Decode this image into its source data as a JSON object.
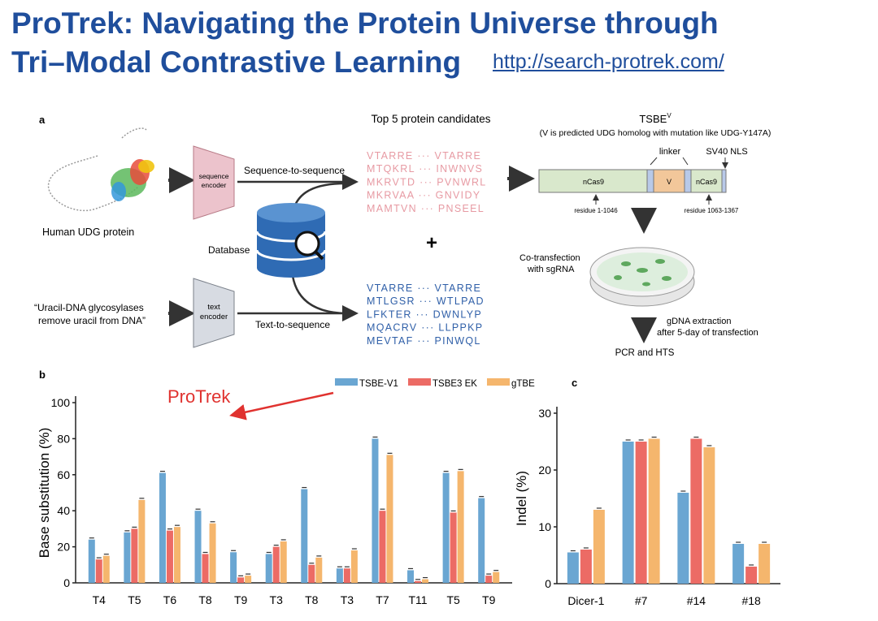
{
  "title": {
    "line1": "ProTrek: Navigating the Protein Universe through",
    "line2": "Tri–Modal Contrastive Learning",
    "url": "http://search-protrek.com/"
  },
  "panel_a": {
    "label": "a",
    "protein_label": "Human UDG protein",
    "seq_encoder": [
      "sequence",
      "encoder"
    ],
    "text_encoder": [
      "text",
      "encoder"
    ],
    "seq2seq": "Sequence-to-sequence",
    "text2seq": "Text-to-sequence",
    "database": "Database",
    "query_text": [
      "“Uracil-DNA glycosylases",
      "remove uracil from DNA”"
    ],
    "candidates_title": "Top 5 protein candidates",
    "plus": "+",
    "seq_candidates": [
      [
        "VTARRE",
        "VTARRE"
      ],
      [
        "MTQKRL",
        "INWNVS"
      ],
      [
        "MKRVTD",
        "PVNWRL"
      ],
      [
        "MKRVAA",
        "GNVIDY"
      ],
      [
        "MAMTVN",
        "PNSEEL"
      ]
    ],
    "text_candidates": [
      [
        "VTARRE",
        "VTARRE"
      ],
      [
        "MTLGSR",
        "WTLPAD"
      ],
      [
        "LFKTER",
        "DWNLYP"
      ],
      [
        "MQACRV",
        "LLPPKP"
      ],
      [
        "MEVTAF",
        "PINWQL"
      ]
    ],
    "tsbe_title": "TSBE",
    "tsbe_sup": "V",
    "tsbe_note": "(V is predicted UDG homolog with mutation like UDG-Y147A)",
    "linker": "linker",
    "nls": "SV40 NLS",
    "ncas9_left": "nCas9",
    "v_label": "V",
    "ncas9_right": "nCas9",
    "residue_left": "residue 1-1046",
    "residue_right": "residue 1063-1367",
    "cotransfection": [
      "Co-transfection",
      "with sgRNA"
    ],
    "gdna": [
      "gDNA extraction",
      "after 5-day of transfection"
    ],
    "pcr": "PCR and HTS"
  },
  "annotation": {
    "protrek": "ProTrek"
  },
  "chart_data": [
    {
      "type": "bar",
      "panel": "b",
      "ylabel": "Base substitution (%)",
      "xlabel": "",
      "ylim": [
        0,
        100
      ],
      "yticks": [
        0,
        20,
        40,
        60,
        80,
        100
      ],
      "categories": [
        "T4",
        "T5",
        "T6",
        "T8",
        "T9",
        "T3",
        "T8",
        "T3",
        "T7",
        "T11",
        "T5",
        "T9"
      ],
      "series": [
        {
          "name": "TSBE-V1",
          "color": "#6aa6d2",
          "values": [
            24,
            28,
            61,
            40,
            17,
            16,
            52,
            8,
            80,
            7,
            61,
            47
          ]
        },
        {
          "name": "TSBE3 EK",
          "color": "#ec6b65",
          "values": [
            13,
            30,
            29,
            16,
            3,
            20,
            10,
            8,
            40,
            1,
            39,
            4
          ]
        },
        {
          "name": "gTBE",
          "color": "#f5b66d",
          "values": [
            15,
            46,
            31,
            33,
            4,
            23,
            14,
            18,
            71,
            2,
            62,
            6
          ]
        }
      ],
      "legend": "top"
    },
    {
      "type": "bar",
      "panel": "c",
      "ylabel": "Indel (%)",
      "xlabel": "",
      "ylim": [
        0,
        30
      ],
      "yticks": [
        0,
        10,
        20,
        30
      ],
      "categories": [
        "Dicer-1",
        "#7",
        "#14",
        "#18"
      ],
      "series": [
        {
          "name": "TSBE-V1",
          "color": "#6aa6d2",
          "values": [
            5.5,
            25,
            16,
            7
          ]
        },
        {
          "name": "TSBE3 EK",
          "color": "#ec6b65",
          "values": [
            6,
            25,
            25.5,
            3
          ]
        },
        {
          "name": "gTBE",
          "color": "#f5b66d",
          "values": [
            13,
            25.5,
            24,
            7
          ]
        }
      ]
    }
  ],
  "colors": {
    "title": "#1f4e9c",
    "seq_text": "#e79aa3",
    "text_seq": "#2f5fa8",
    "protrek": "#e0322f"
  }
}
